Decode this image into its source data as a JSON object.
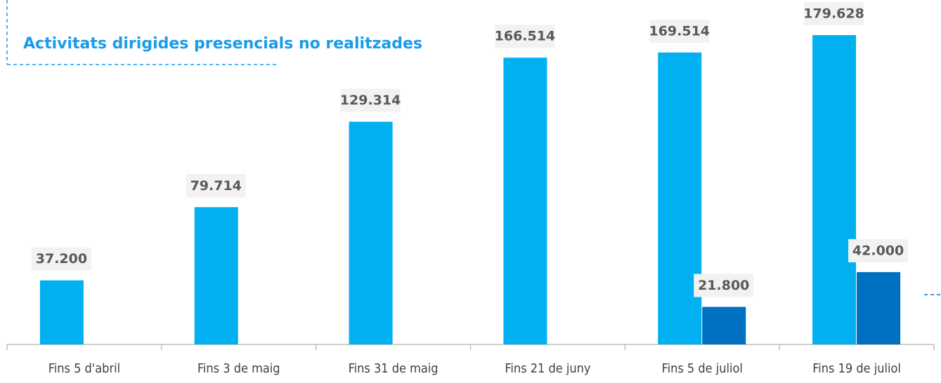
{
  "chart_data": {
    "type": "bar",
    "categories": [
      "Fins 5 d'abril",
      "Fins 3 de maig",
      "Fins 31 de maig",
      "Fins 21 de juny",
      "Fins 5 de juliol",
      "Fins 19 de juliol"
    ],
    "series": [
      {
        "name": "Activitats dirigides presencials no realitzades",
        "color": "#00b0f0",
        "values": [
          37200,
          79714,
          129314,
          166514,
          169514,
          179628
        ],
        "value_labels": [
          "37.200",
          "79.714",
          "129.314",
          "166.514",
          "169.514",
          "179.628"
        ]
      },
      {
        "color": "#0070c0",
        "values": [
          null,
          null,
          null,
          null,
          21800,
          42000
        ],
        "value_labels": [
          null,
          null,
          null,
          null,
          "21.800",
          "42.000"
        ]
      }
    ],
    "ylim": [
      0,
      200000
    ]
  }
}
